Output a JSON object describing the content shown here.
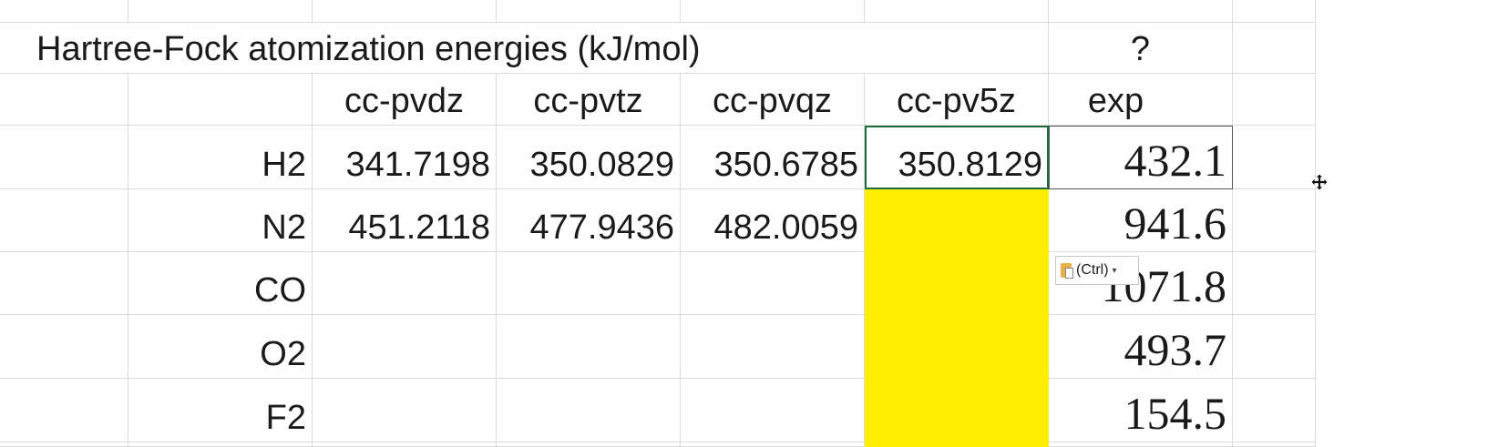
{
  "title": "Hartree-Fock atomization energies (kJ/mol)",
  "question_mark": "?",
  "columns": [
    "cc-pvdz",
    "cc-pvtz",
    "cc-pvqz",
    "cc-pv5z",
    "exp"
  ],
  "rows": [
    {
      "label": "H2",
      "pvdz": "341.7198",
      "pvtz": "350.0829",
      "pvqz": "350.6785",
      "pv5z": "350.8129",
      "exp": "432.1"
    },
    {
      "label": "N2",
      "pvdz": "451.2118",
      "pvtz": "477.9436",
      "pvqz": "482.0059",
      "pv5z": "",
      "exp": "941.6"
    },
    {
      "label": "CO",
      "pvdz": "",
      "pvtz": "",
      "pvqz": "",
      "pv5z": "",
      "exp": "1071.8"
    },
    {
      "label": "O2",
      "pvdz": "",
      "pvtz": "",
      "pvqz": "",
      "pv5z": "",
      "exp": "493.7"
    },
    {
      "label": "F2",
      "pvdz": "",
      "pvtz": "",
      "pvqz": "",
      "pv5z": "",
      "exp": "154.5"
    }
  ],
  "paste_options": {
    "label": "(Ctrl)",
    "icon": "clipboard-icon"
  },
  "highlight_color": "#ffee00",
  "selection_color": "#1e6b40"
}
